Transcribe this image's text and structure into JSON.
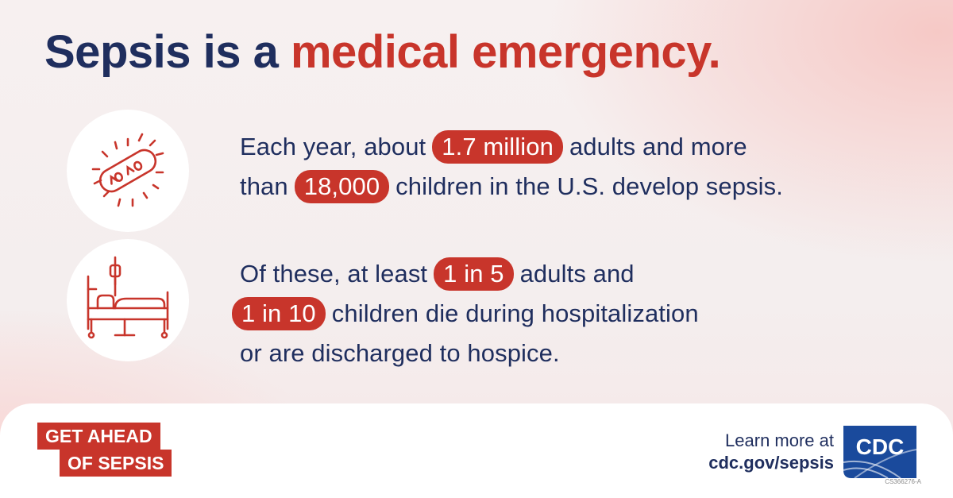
{
  "headline": {
    "part1": "Sepsis is a ",
    "part2": "medical emergency."
  },
  "stat1": {
    "line1_pre": "Each year, about ",
    "line1_pill": "1.7 million",
    "line1_post": " adults and more",
    "line2_pre": "than ",
    "line2_pill": "18,000",
    "line2_post": " children in the U.S. develop sepsis."
  },
  "stat2": {
    "line1_pre": "Of these, at least ",
    "line1_pill": "1 in 5",
    "line1_post": " adults and",
    "line2_pill": "1 in 10",
    "line2_post": " children die during hospitalization",
    "line3": "or are discharged to hospice."
  },
  "icons": {
    "stat1": "bacteria-icon",
    "stat2": "hospital-bed-icon"
  },
  "footer": {
    "campaign_line1": "GET AHEAD",
    "campaign_line2": "OF SEPSIS",
    "learn_more": "Learn more at",
    "url": "cdc.gov/sepsis",
    "logo_text": "CDC",
    "code": "CS366276-A"
  },
  "colors": {
    "navy": "#1f2e5e",
    "red": "#c8352b",
    "cdc_blue": "#1a4a9c"
  }
}
